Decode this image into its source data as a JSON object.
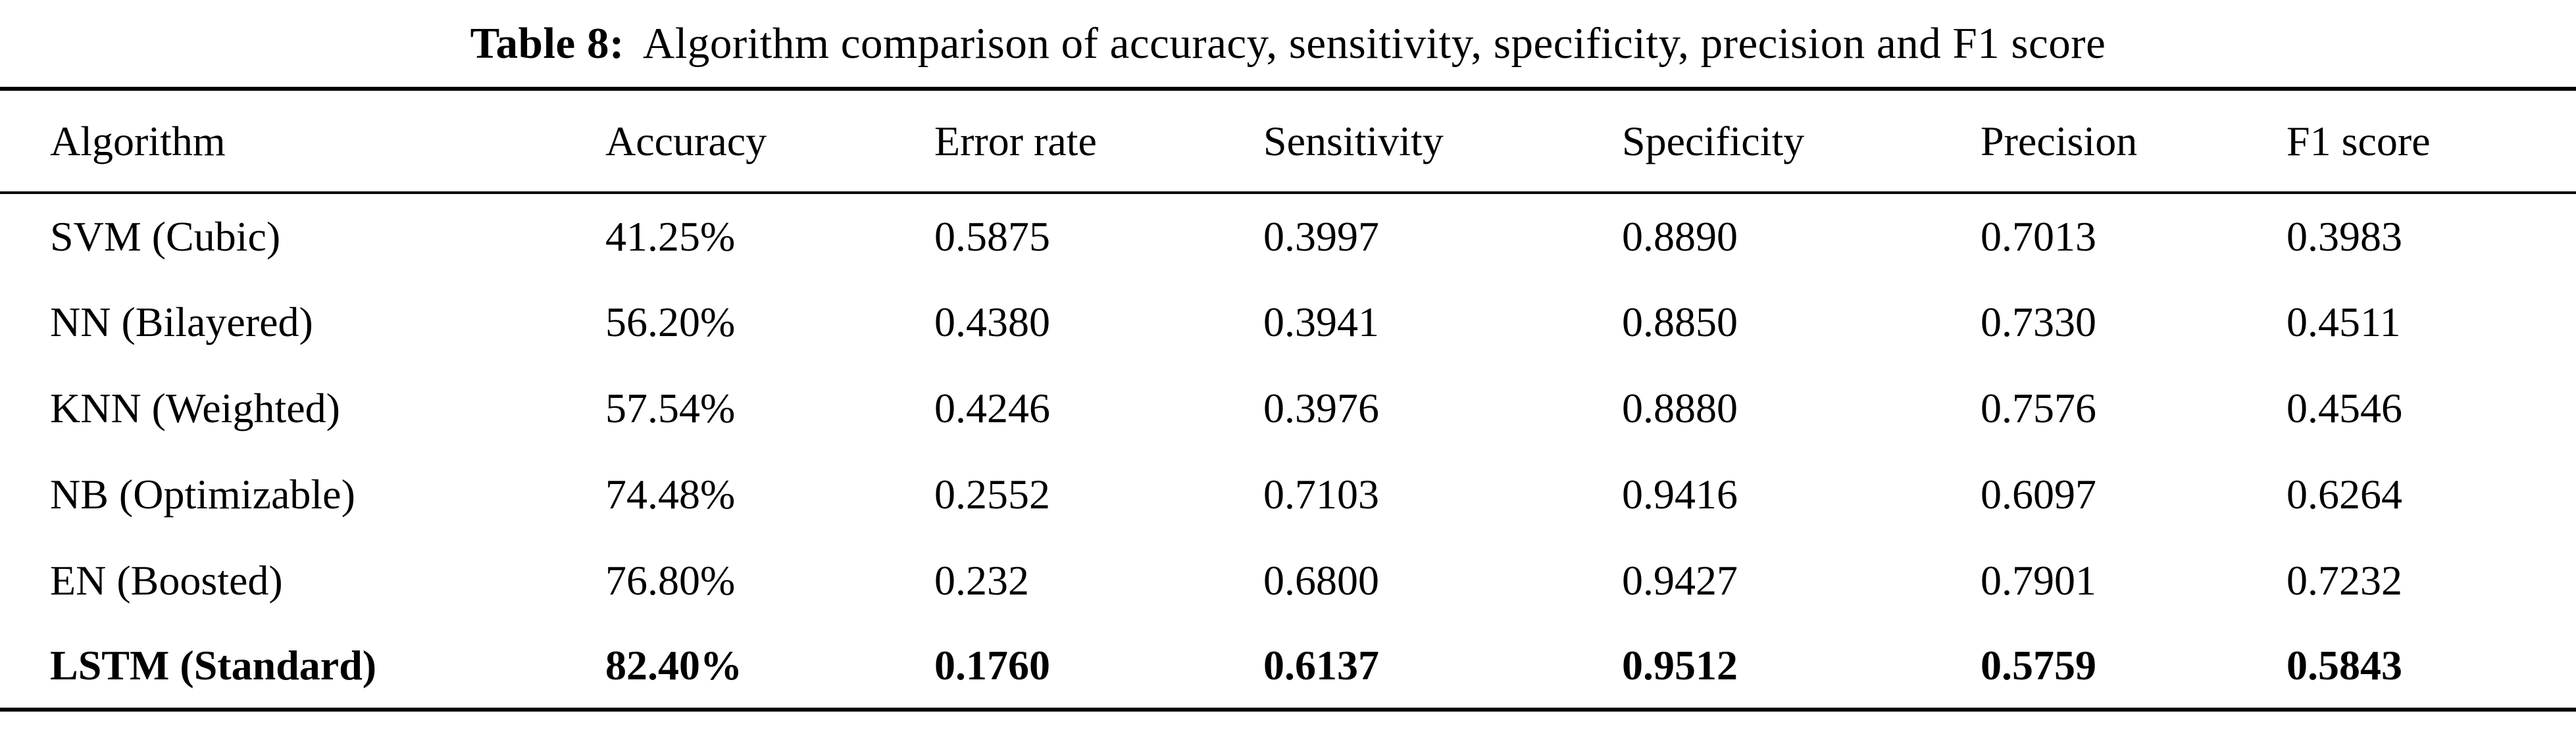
{
  "caption": {
    "label": "Table 8:",
    "text": "Algorithm comparison of accuracy, sensitivity, specificity, precision and F1 score"
  },
  "chart_data": {
    "type": "table",
    "title": "Table 8: Algorithm comparison of accuracy, sensitivity, specificity, precision and F1 score",
    "columns": [
      "Algorithm",
      "Accuracy",
      "Error rate",
      "Sensitivity",
      "Specificity",
      "Precision",
      "F1 score"
    ],
    "rows": [
      {
        "bold": false,
        "cells": [
          "SVM (Cubic)",
          "41.25%",
          "0.5875",
          "0.3997",
          "0.8890",
          "0.7013",
          "0.3983"
        ]
      },
      {
        "bold": false,
        "cells": [
          "NN (Bilayered)",
          "56.20%",
          "0.4380",
          "0.3941",
          "0.8850",
          "0.7330",
          "0.4511"
        ]
      },
      {
        "bold": false,
        "cells": [
          "KNN (Weighted)",
          "57.54%",
          "0.4246",
          "0.3976",
          "0.8880",
          "0.7576",
          "0.4546"
        ]
      },
      {
        "bold": false,
        "cells": [
          "NB (Optimizable)",
          "74.48%",
          "0.2552",
          "0.7103",
          "0.9416",
          "0.6097",
          "0.6264"
        ]
      },
      {
        "bold": false,
        "cells": [
          "EN (Boosted)",
          "76.80%",
          "0.232",
          "0.6800",
          "0.9427",
          "0.7901",
          "0.7232"
        ]
      },
      {
        "bold": true,
        "cells": [
          "LSTM (Standard)",
          "82.40%",
          "0.1760",
          "0.6137",
          "0.9512",
          "0.5759",
          "0.5843"
        ]
      }
    ]
  }
}
